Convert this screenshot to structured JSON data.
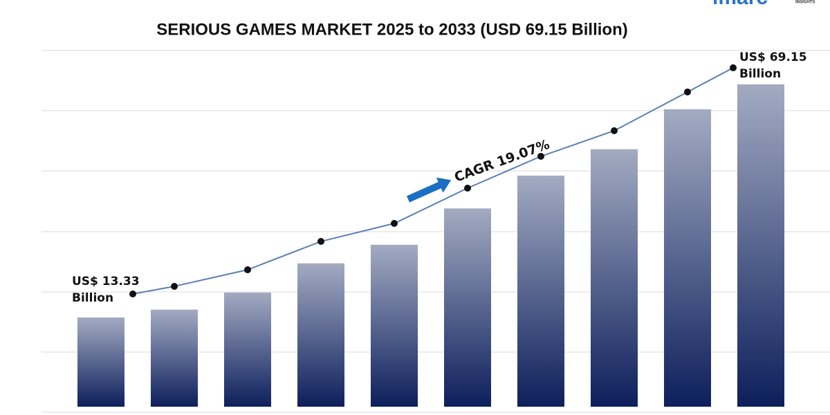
{
  "chart_data": {
    "type": "bar",
    "title": "SERIOUS GAMES MARKET 2025 to 2033 (USD 69.15 Billion)",
    "values": [
      13.33,
      15.21,
      19.3,
      26.3,
      30.74,
      39.45,
      47.3,
      53.62,
      63.18,
      69.15
    ],
    "value_labels": [
      "US$ 13.33 Billion",
      null,
      null,
      null,
      null,
      null,
      null,
      null,
      null,
      "US$ 69.15 Billion"
    ],
    "color": "#0d1f5c",
    "line_color": "#5a7fb5",
    "annotation": "CAGR 19.07%",
    "grid": true
  },
  "logo": {
    "name": "imarc",
    "tagline": "INSIGHTS"
  }
}
